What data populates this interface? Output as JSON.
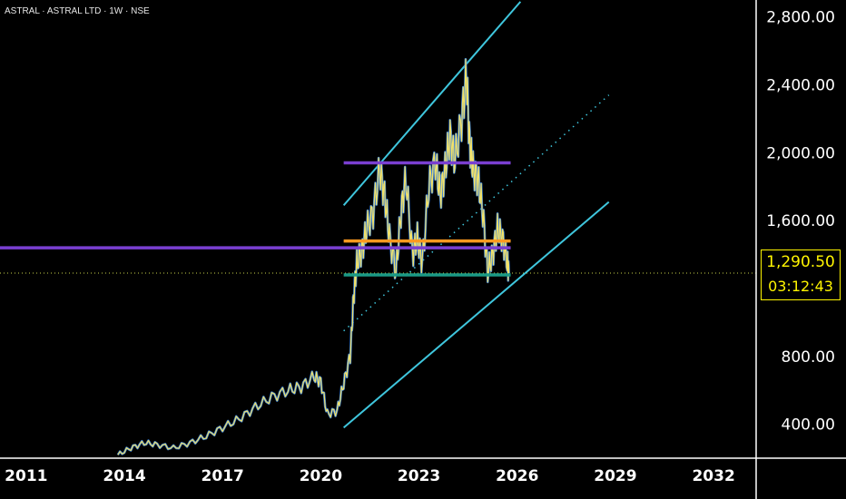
{
  "header": {
    "symbol_text": "ASTRAL · ASTRAL LTD · 1W · NSE"
  },
  "price_tag": {
    "last_price": "1,290.50",
    "countdown": "03:12:43",
    "color": "#fff500"
  },
  "chart_data": {
    "type": "line",
    "title": "",
    "xlabel": "",
    "ylabel": "",
    "x_ticks": [
      2011,
      2014,
      2017,
      2020,
      2023,
      2026,
      2029,
      2032
    ],
    "y_ticks": [
      400,
      800,
      1600,
      2000,
      2400,
      2800
    ],
    "y_tick_labels": [
      "400.00",
      "800.00",
      "1,600.00",
      "2,000.00",
      "2,400.00",
      "2,800.00"
    ],
    "xlim": [
      2010.2,
      2033.3
    ],
    "ylim": [
      200,
      2900
    ],
    "series": [
      {
        "color": "#f2e26a",
        "x": [
          2013.8,
          2014.2,
          2014.6,
          2015.0,
          2015.5,
          2016.0,
          2016.5,
          2017.0,
          2017.5,
          2018.0,
          2018.5,
          2019.0,
          2019.4,
          2019.8,
          2020.0,
          2020.2,
          2020.5,
          2020.7,
          2020.9,
          2021.0,
          2021.1,
          2021.25,
          2021.4,
          2021.6,
          2021.8,
          2021.95,
          2022.1,
          2022.3,
          2022.45,
          2022.6,
          2022.8,
          2022.95,
          2023.1,
          2023.3,
          2023.5,
          2023.65,
          2023.8,
          2023.95,
          2024.1,
          2024.3,
          2024.45,
          2024.55,
          2024.65,
          2024.8,
          2024.95,
          2025.1,
          2025.25,
          2025.4,
          2025.55,
          2025.7,
          2025.75
        ],
        "y": [
          220,
          260,
          290,
          280,
          260,
          290,
          330,
          380,
          430,
          500,
          560,
          600,
          620,
          680,
          650,
          460,
          480,
          640,
          800,
          1150,
          1350,
          1420,
          1550,
          1650,
          1900,
          1750,
          1500,
          1300,
          1650,
          1850,
          1400,
          1500,
          1350,
          1800,
          1950,
          1750,
          1900,
          2100,
          1950,
          2200,
          2450,
          2050,
          1900,
          1850,
          1650,
          1300,
          1400,
          1550,
          1500,
          1350,
          1290
        ]
      }
    ],
    "horizontal_levels": [
      {
        "y": 1940,
        "x_start": 2020.7,
        "x_end": 2025.8,
        "color": "#7a3fd1"
      },
      {
        "y": 1440,
        "x_start": 2010.2,
        "x_end": 2025.8,
        "color": "#7a3fd1"
      },
      {
        "y": 1480,
        "x_start": 2020.7,
        "x_end": 2025.8,
        "color": "#ff9a1f"
      },
      {
        "y": 1280,
        "x_start": 2020.7,
        "x_end": 2025.8,
        "color": "#1a9a86"
      }
    ],
    "channel_lines": [
      {
        "x": [
          2020.7,
          2026.1
        ],
        "y": [
          1690,
          2890
        ],
        "color": "#3fc6dd",
        "style": "solid"
      },
      {
        "x": [
          2020.7,
          2028.8
        ],
        "y": [
          950,
          2340
        ],
        "color": "#3fc6dd",
        "style": "dotted"
      },
      {
        "x": [
          2020.7,
          2028.8
        ],
        "y": [
          380,
          1710
        ],
        "color": "#3fc6dd",
        "style": "solid"
      }
    ],
    "last_price_line": {
      "y": 1290.5,
      "color": "#c8d24a"
    },
    "grid": false
  }
}
